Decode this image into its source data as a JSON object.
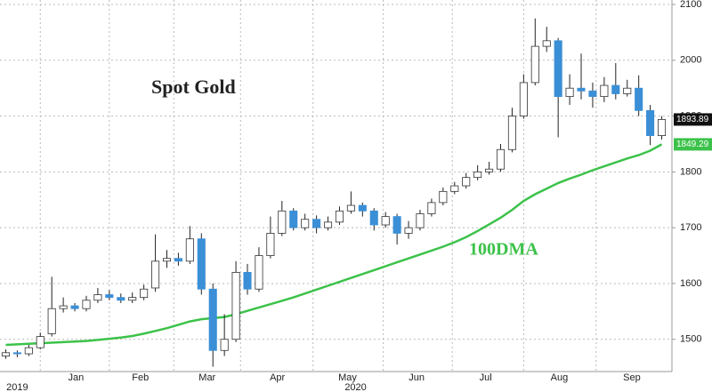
{
  "chart_data": {
    "type": "candlestick",
    "title": "Spot Gold",
    "categories": [
      null,
      null,
      null,
      null,
      null,
      null,
      null,
      null,
      null,
      null,
      null,
      null,
      null,
      null,
      null,
      null,
      null,
      null,
      null,
      null,
      null,
      null,
      null,
      null,
      null,
      null,
      null,
      null,
      null,
      null,
      null,
      null,
      null,
      null,
      null,
      null,
      null,
      null,
      null,
      null,
      null,
      null,
      null,
      null,
      null,
      null,
      null,
      null,
      null,
      null,
      null,
      null,
      null,
      null,
      null,
      null,
      null,
      null
    ],
    "open": [
      1470,
      1476,
      1474,
      1485,
      1510,
      1555,
      1560,
      1555,
      1570,
      1580,
      1575,
      1570,
      1575,
      1592,
      1640,
      1645,
      1640,
      1680,
      1590,
      1480,
      1500,
      1620,
      1590,
      1650,
      1690,
      1730,
      1700,
      1715,
      1700,
      1710,
      1730,
      1740,
      1730,
      1705,
      1720,
      1690,
      1700,
      1725,
      1745,
      1765,
      1775,
      1790,
      1800,
      1805,
      1840,
      1900,
      1960,
      2025,
      2035,
      1935,
      1950,
      1945,
      1935,
      1955,
      1940,
      1950,
      1910,
      1865
    ],
    "high": [
      1482,
      1480,
      1490,
      1512,
      1612,
      1575,
      1565,
      1578,
      1592,
      1588,
      1582,
      1584,
      1598,
      1688,
      1660,
      1655,
      1703,
      1690,
      1600,
      1545,
      1640,
      1635,
      1665,
      1720,
      1748,
      1735,
      1725,
      1722,
      1720,
      1738,
      1765,
      1745,
      1735,
      1728,
      1725,
      1712,
      1732,
      1752,
      1772,
      1782,
      1798,
      1812,
      1818,
      1850,
      1915,
      1975,
      2075,
      2060,
      2040,
      1975,
      2012,
      1960,
      1970,
      1995,
      1965,
      1973,
      1920,
      1900
    ],
    "low": [
      1465,
      1468,
      1470,
      1482,
      1505,
      1548,
      1550,
      1550,
      1565,
      1570,
      1565,
      1565,
      1570,
      1585,
      1628,
      1632,
      1635,
      1580,
      1451,
      1470,
      1495,
      1580,
      1585,
      1645,
      1685,
      1695,
      1695,
      1690,
      1695,
      1705,
      1725,
      1720,
      1695,
      1700,
      1670,
      1680,
      1695,
      1720,
      1740,
      1760,
      1770,
      1785,
      1795,
      1800,
      1835,
      1895,
      1955,
      2015,
      1862,
      1920,
      1930,
      1915,
      1925,
      1930,
      1935,
      1900,
      1848,
      1858
    ],
    "close": [
      1476,
      1474,
      1485,
      1505,
      1555,
      1560,
      1555,
      1570,
      1580,
      1575,
      1570,
      1575,
      1590,
      1640,
      1645,
      1640,
      1680,
      1590,
      1480,
      1500,
      1620,
      1590,
      1650,
      1690,
      1730,
      1700,
      1715,
      1700,
      1710,
      1730,
      1740,
      1730,
      1705,
      1720,
      1690,
      1700,
      1725,
      1745,
      1765,
      1775,
      1790,
      1800,
      1805,
      1840,
      1900,
      1960,
      2025,
      2035,
      1935,
      1950,
      1945,
      1935,
      1955,
      1940,
      1950,
      1910,
      1865,
      1893.89
    ],
    "up_color": "#ffffff",
    "down_color": "#3a8fd6",
    "lines": [
      {
        "name": "100DMA",
        "color": "#3cc24a",
        "values": [
          1490,
          1491,
          1492,
          1493,
          1494,
          1495,
          1496,
          1497,
          1499,
          1501,
          1503,
          1506,
          1510,
          1515,
          1520,
          1526,
          1532,
          1536,
          1538,
          1540,
          1545,
          1551,
          1557,
          1563,
          1569,
          1575,
          1582,
          1589,
          1596,
          1603,
          1610,
          1617,
          1624,
          1631,
          1638,
          1645,
          1652,
          1659,
          1666,
          1674,
          1683,
          1694,
          1706,
          1718,
          1732,
          1748,
          1760,
          1770,
          1780,
          1788,
          1795,
          1803,
          1810,
          1817,
          1824,
          1830,
          1838,
          1849.29
        ]
      }
    ],
    "ylim": [
      1447,
      2108
    ],
    "yticks": [
      1500,
      1600,
      1700,
      1800,
      1900,
      2000,
      2100
    ],
    "xticks": [
      {
        "value": 6.6,
        "label": "Jan"
      },
      {
        "value": 12.2,
        "label": "Feb"
      },
      {
        "value": 18.0,
        "label": "Mar"
      },
      {
        "value": 24.1,
        "label": "Apr"
      },
      {
        "value": 30.2,
        "label": "May"
      },
      {
        "value": 36.2,
        "label": "Jun"
      },
      {
        "value": 42.2,
        "label": "Jul"
      },
      {
        "value": 48.6,
        "label": "Aug"
      },
      {
        "value": 54.9,
        "label": "Sep"
      }
    ],
    "year_ticks": [
      {
        "value": 1.5,
        "label": "2019"
      },
      {
        "value": 30.9,
        "label": "2020"
      }
    ],
    "x_gridlines": [
      3.5,
      9.5,
      15.1,
      20.9,
      27.2,
      33.3,
      39.3,
      45.5,
      51.8
    ],
    "grid": true
  }
}
